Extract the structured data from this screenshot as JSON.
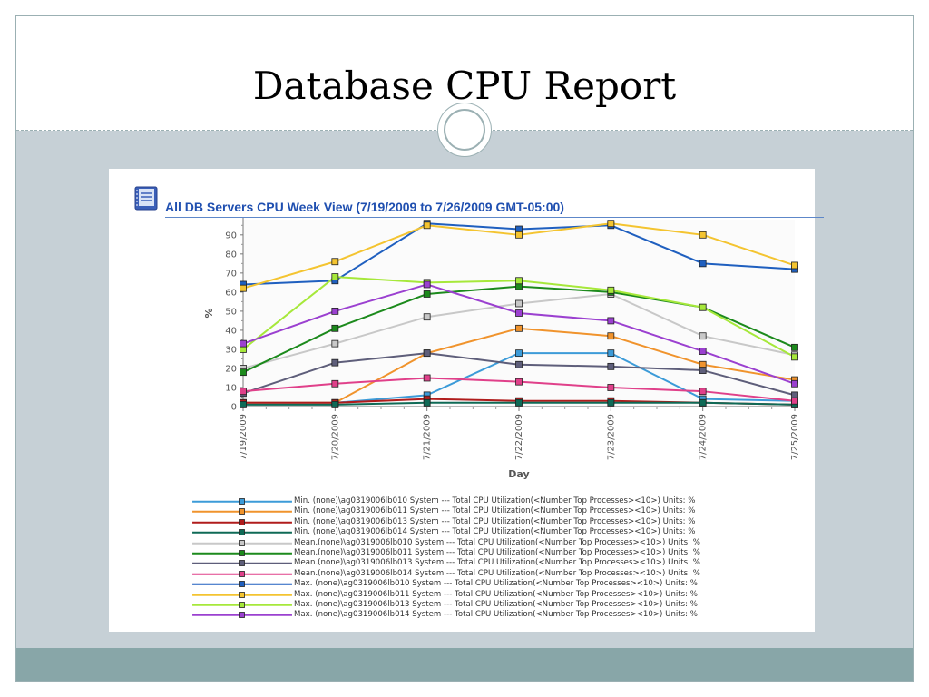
{
  "slide": {
    "title": "Database CPU Report",
    "colors": {
      "frame": "#9bb0b3",
      "content_bg": "#c6d0d6",
      "footer": "#88a6a8"
    }
  },
  "report": {
    "title": "All DB Servers CPU Week View (7/19/2009 to 7/26/2009 GMT-05:00)",
    "icon": "report-book-icon"
  },
  "chart_data": {
    "type": "line",
    "title": "",
    "xlabel": "Day",
    "ylabel": "%",
    "ylim": [
      0,
      98
    ],
    "yticks": [
      0,
      10,
      20,
      30,
      40,
      50,
      60,
      70,
      80,
      90
    ],
    "grid": false,
    "legend_position": "bottom",
    "categories": [
      "7/19/2009",
      "7/20/2009",
      "7/21/2009",
      "7/22/2009",
      "7/23/2009",
      "7/24/2009",
      "7/25/2009"
    ],
    "series": [
      {
        "name": "Min. (none)\\ag0319006lb010 System --- Total CPU Utilization(<Number Top Processes><10>)",
        "units": "%",
        "color": "#3c9bd8",
        "values": [
          2,
          2,
          6,
          28,
          28,
          4,
          3
        ]
      },
      {
        "name": "Min. (none)\\ag0319006lb011 System --- Total CPU Utilization(<Number Top Processes><10>)",
        "units": "%",
        "color": "#f0932c",
        "values": [
          2,
          2,
          28,
          41,
          37,
          22,
          14
        ]
      },
      {
        "name": "Min. (none)\\ag0319006lb013 System --- Total CPU Utilization(<Number Top Processes><10>)",
        "units": "%",
        "color": "#b01c1c",
        "values": [
          2,
          2,
          4,
          3,
          3,
          2,
          1
        ]
      },
      {
        "name": "Min. (none)\\ag0319006lb014 System --- Total CPU Utilization(<Number Top Processes><10>)",
        "units": "%",
        "color": "#0f6a56",
        "values": [
          1,
          1,
          2,
          2,
          2,
          2,
          1
        ]
      },
      {
        "name": "Mean.(none)\\ag0319006lb010 System --- Total CPU Utilization(<Number Top Processes><10>)",
        "units": "%",
        "color": "#c8c8c8",
        "values": [
          20,
          33,
          47,
          54,
          59,
          37,
          27
        ]
      },
      {
        "name": "Mean.(none)\\ag0319006lb011 System --- Total CPU Utilization(<Number Top Processes><10>)",
        "units": "%",
        "color": "#1c8a1c",
        "values": [
          18,
          41,
          59,
          63,
          60,
          52,
          31
        ]
      },
      {
        "name": "Mean.(none)\\ag0319006lb013 System --- Total CPU Utilization(<Number Top Processes><10>)",
        "units": "%",
        "color": "#5e5e7a",
        "values": [
          7,
          23,
          28,
          22,
          21,
          19,
          6
        ]
      },
      {
        "name": "Mean.(none)\\ag0319006lb014 System --- Total CPU Utilization(<Number Top Processes><10>)",
        "units": "%",
        "color": "#e0408a",
        "values": [
          8,
          12,
          15,
          13,
          10,
          8,
          3
        ]
      },
      {
        "name": "Max. (none)\\ag0319006lb010 System --- Total CPU Utilization(<Number Top Processes><10>)",
        "units": "%",
        "color": "#1f5fbf",
        "values": [
          64,
          66,
          96,
          93,
          95,
          75,
          72
        ]
      },
      {
        "name": "Max. (none)\\ag0319006lb011 System --- Total CPU Utilization(<Number Top Processes><10>)",
        "units": "%",
        "color": "#f4c430",
        "values": [
          62,
          76,
          95,
          90,
          96,
          90,
          74
        ]
      },
      {
        "name": "Max. (none)\\ag0319006lb013 System --- Total CPU Utilization(<Number Top Processes><10>)",
        "units": "%",
        "color": "#a6e83a",
        "values": [
          30,
          68,
          65,
          66,
          61,
          52,
          26
        ]
      },
      {
        "name": "Max. (none)\\ag0319006lb014 System --- Total CPU Utilization(<Number Top Processes><10>)",
        "units": "%",
        "color": "#9b40d0",
        "values": [
          33,
          50,
          64,
          49,
          45,
          29,
          12
        ]
      }
    ]
  }
}
